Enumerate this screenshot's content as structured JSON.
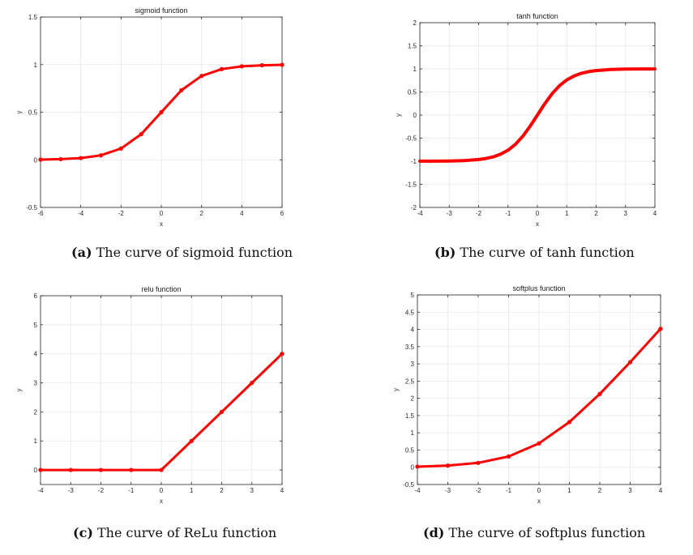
{
  "chart_data": [
    {
      "type": "line",
      "title": "sigmoid function",
      "xlabel": "x",
      "ylabel": "y",
      "xlim": [
        -6,
        6
      ],
      "ylim": [
        -0.5,
        1.5
      ],
      "xticks": [
        -6,
        -4,
        -2,
        0,
        2,
        4,
        6
      ],
      "yticks": [
        -0.5,
        0,
        0.5,
        1,
        1.5
      ],
      "xtick_labels": [
        "-6",
        "-4",
        "-2",
        "0",
        "2",
        "4",
        "6"
      ],
      "ytick_labels": [
        "-0.5",
        "0",
        "0.5",
        "1",
        "1.5"
      ],
      "grid": true,
      "color": "#ff0000",
      "markers": true,
      "x": [
        -6,
        -5,
        -4,
        -3,
        -2,
        -1,
        0,
        1,
        2,
        3,
        4,
        5,
        6
      ],
      "y": [
        0.002,
        0.007,
        0.018,
        0.047,
        0.119,
        0.269,
        0.5,
        0.731,
        0.881,
        0.953,
        0.982,
        0.993,
        0.998
      ],
      "caption_label": "(a)",
      "caption_text": " The curve of sigmoid function"
    },
    {
      "type": "line",
      "title": "tanh function",
      "xlabel": "x",
      "ylabel": "y",
      "xlim": [
        -4,
        4
      ],
      "ylim": [
        -2,
        2
      ],
      "xticks": [
        -4,
        -3,
        -2,
        -1,
        0,
        1,
        2,
        3,
        4
      ],
      "yticks": [
        -2,
        -1.5,
        -1,
        -0.5,
        0,
        0.5,
        1,
        1.5,
        2
      ],
      "xtick_labels": [
        "-4",
        "-3",
        "-2",
        "-1",
        "0",
        "1",
        "2",
        "3",
        "4"
      ],
      "ytick_labels": [
        "-2",
        "-1.5",
        "-1",
        "-0.5",
        "0",
        "0.5",
        "1",
        "1.5",
        "2"
      ],
      "grid": true,
      "color": "#ff0000",
      "markers": false,
      "x": [
        -4,
        -3.5,
        -3,
        -2.5,
        -2,
        -1.75,
        -1.5,
        -1.25,
        -1,
        -0.75,
        -0.5,
        -0.25,
        0,
        0.25,
        0.5,
        0.75,
        1,
        1.25,
        1.5,
        1.75,
        2,
        2.5,
        3,
        3.5,
        4
      ],
      "y": [
        -0.999,
        -0.998,
        -0.995,
        -0.987,
        -0.964,
        -0.941,
        -0.905,
        -0.848,
        -0.762,
        -0.635,
        -0.462,
        -0.245,
        0,
        0.245,
        0.462,
        0.635,
        0.762,
        0.848,
        0.905,
        0.941,
        0.964,
        0.987,
        0.995,
        0.998,
        0.999
      ],
      "caption_label": "(b)",
      "caption_text": " The curve of tanh function"
    },
    {
      "type": "line",
      "title": "relu function",
      "xlabel": "x",
      "ylabel": "y",
      "xlim": [
        -4,
        4
      ],
      "ylim": [
        -0.5,
        6
      ],
      "xticks": [
        -4,
        -3,
        -2,
        -1,
        0,
        1,
        2,
        3,
        4
      ],
      "yticks": [
        0,
        1,
        2,
        3,
        4,
        5,
        6
      ],
      "xtick_labels": [
        "-4",
        "-3",
        "-2",
        "-1",
        "0",
        "1",
        "2",
        "3",
        "4"
      ],
      "ytick_labels": [
        "0",
        "1",
        "2",
        "3",
        "4",
        "5",
        "6"
      ],
      "grid": true,
      "color": "#ff0000",
      "markers": true,
      "x": [
        -4,
        -3,
        -2,
        -1,
        0,
        1,
        2,
        3,
        4
      ],
      "y": [
        0,
        0,
        0,
        0,
        0,
        1,
        2,
        3,
        4
      ],
      "caption_label": "(c)",
      "caption_text": " The curve of ReLu function"
    },
    {
      "type": "line",
      "title": "softplus function",
      "xlabel": "x",
      "ylabel": "y",
      "xlim": [
        -4,
        4
      ],
      "ylim": [
        -0.5,
        5
      ],
      "xticks": [
        -4,
        -3,
        -2,
        -1,
        0,
        1,
        2,
        3,
        4
      ],
      "yticks": [
        -0.5,
        0,
        0.5,
        1,
        1.5,
        2,
        2.5,
        3,
        3.5,
        4,
        4.5,
        5
      ],
      "xtick_labels": [
        "-4",
        "-3",
        "-2",
        "-1",
        "0",
        "1",
        "2",
        "3",
        "4"
      ],
      "ytick_labels": [
        "-0.5",
        "0",
        "0.5",
        "1",
        "1.5",
        "2",
        "2.5",
        "3",
        "3.5",
        "4",
        "4.5",
        "5"
      ],
      "grid": true,
      "color": "#ff0000",
      "markers": true,
      "x": [
        -4,
        -3,
        -2,
        -1,
        0,
        1,
        2,
        3,
        4
      ],
      "y": [
        0.018,
        0.049,
        0.127,
        0.313,
        0.693,
        1.313,
        2.127,
        3.049,
        4.018
      ],
      "caption_label": "(d)",
      "caption_text": " The curve of softplus function"
    }
  ]
}
